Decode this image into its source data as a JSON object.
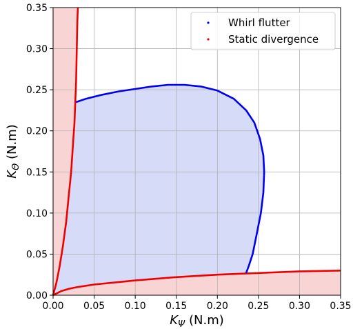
{
  "chart_data": {
    "type": "line",
    "xlabel": {
      "base": "K",
      "sub": "Ψ",
      "unit": " (N.m)"
    },
    "ylabel": {
      "base": "K",
      "sub": "Θ",
      "unit": " (N.m)"
    },
    "xlim": [
      0,
      0.35
    ],
    "ylim": [
      0,
      0.35
    ],
    "xticks": [
      "0.00",
      "0.05",
      "0.10",
      "0.15",
      "0.20",
      "0.25",
      "0.30",
      "0.35"
    ],
    "yticks": [
      "0.00",
      "0.05",
      "0.10",
      "0.15",
      "0.20",
      "0.25",
      "0.30",
      "0.35"
    ],
    "grid": true,
    "legend_position": "top-right",
    "colors": {
      "flutter": "#0000ee",
      "divergence": "#ee0000",
      "flutter_fill": "#d6dcf7",
      "divergence_fill": "#f8d4d4",
      "grid": "#b0b0b0"
    },
    "series": [
      {
        "name": "Whirl flutter",
        "color": "#0000ee",
        "x": [
          0.028,
          0.04,
          0.06,
          0.08,
          0.1,
          0.12,
          0.14,
          0.16,
          0.18,
          0.2,
          0.22,
          0.235,
          0.245,
          0.252,
          0.256,
          0.257,
          0.256,
          0.253,
          0.248,
          0.243,
          0.238,
          0.235
        ],
        "y": [
          0.235,
          0.239,
          0.244,
          0.248,
          0.251,
          0.254,
          0.256,
          0.256,
          0.254,
          0.249,
          0.239,
          0.225,
          0.21,
          0.19,
          0.17,
          0.15,
          0.125,
          0.1,
          0.075,
          0.05,
          0.035,
          0.027
        ]
      },
      {
        "name": "Static divergence",
        "color": "#ee0000",
        "curves": [
          {
            "x": [
              0.0,
              0.004,
              0.008,
              0.012,
              0.016,
              0.019,
              0.022,
              0.024,
              0.026,
              0.027,
              0.028,
              0.0285,
              0.029,
              0.0295,
              0.03,
              0.0302
            ],
            "y": [
              0.0,
              0.015,
              0.035,
              0.06,
              0.09,
              0.12,
              0.15,
              0.18,
              0.21,
              0.235,
              0.26,
              0.285,
              0.31,
              0.33,
              0.345,
              0.35
            ]
          },
          {
            "x": [
              0.0,
              0.01,
              0.02,
              0.03,
              0.05,
              0.08,
              0.1,
              0.15,
              0.2,
              0.25,
              0.3,
              0.35
            ],
            "y": [
              0.0,
              0.005,
              0.008,
              0.01,
              0.013,
              0.016,
              0.018,
              0.022,
              0.025,
              0.027,
              0.029,
              0.03
            ]
          }
        ]
      }
    ]
  }
}
